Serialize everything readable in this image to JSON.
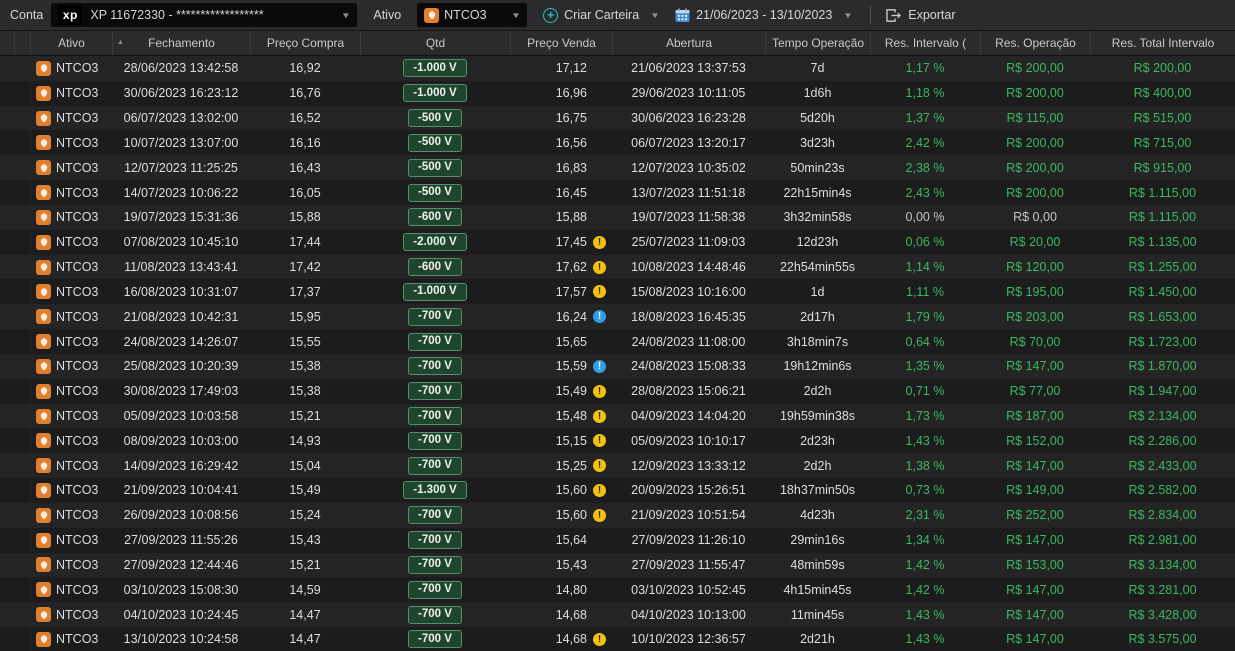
{
  "toolbar": {
    "conta_label": "Conta",
    "account": {
      "logo": "xp",
      "value": "XP 11672330 - ******************"
    },
    "ativo_label": "Ativo",
    "asset": {
      "icon": "natura-logo",
      "value": "NTCO3"
    },
    "criar_carteira_label": "Criar Carteira",
    "date_range": "21/06/2023 - 13/10/2023",
    "exportar_label": "Exportar"
  },
  "table": {
    "columns": [
      "Ativo",
      "Fechamento",
      "Preço Compra",
      "Qtd",
      "Preço Venda",
      "Abertura",
      "Tempo Operação",
      "Res. Intervalo (",
      "Res. Operação",
      "Res. Total Intervalo"
    ],
    "rows": [
      {
        "ativo": "NTCO3",
        "fechamento": "28/06/2023 13:42:58",
        "preco_compra": "16,92",
        "qtd": "-1.000 V",
        "preco_venda": "17,12",
        "alerta": "none",
        "abertura": "21/06/2023 13:37:53",
        "tempo": "7d",
        "res_intervalo": "1,17 %",
        "res_operacao": "R$ 200,00",
        "res_total": "R$ 200,00",
        "muted": false
      },
      {
        "ativo": "NTCO3",
        "fechamento": "30/06/2023 16:23:12",
        "preco_compra": "16,76",
        "qtd": "-1.000 V",
        "preco_venda": "16,96",
        "alerta": "none",
        "abertura": "29/06/2023 10:11:05",
        "tempo": "1d6h",
        "res_intervalo": "1,18 %",
        "res_operacao": "R$ 200,00",
        "res_total": "R$ 400,00",
        "muted": false
      },
      {
        "ativo": "NTCO3",
        "fechamento": "06/07/2023 13:02:00",
        "preco_compra": "16,52",
        "qtd": "-500 V",
        "preco_venda": "16,75",
        "alerta": "none",
        "abertura": "30/06/2023 16:23:28",
        "tempo": "5d20h",
        "res_intervalo": "1,37 %",
        "res_operacao": "R$ 115,00",
        "res_total": "R$ 515,00",
        "muted": false
      },
      {
        "ativo": "NTCO3",
        "fechamento": "10/07/2023 13:07:00",
        "preco_compra": "16,16",
        "qtd": "-500 V",
        "preco_venda": "16,56",
        "alerta": "none",
        "abertura": "06/07/2023 13:20:17",
        "tempo": "3d23h",
        "res_intervalo": "2,42 %",
        "res_operacao": "R$ 200,00",
        "res_total": "R$ 715,00",
        "muted": false
      },
      {
        "ativo": "NTCO3",
        "fechamento": "12/07/2023 11:25:25",
        "preco_compra": "16,43",
        "qtd": "-500 V",
        "preco_venda": "16,83",
        "alerta": "none",
        "abertura": "12/07/2023 10:35:02",
        "tempo": "50min23s",
        "res_intervalo": "2,38 %",
        "res_operacao": "R$ 200,00",
        "res_total": "R$ 915,00",
        "muted": false
      },
      {
        "ativo": "NTCO3",
        "fechamento": "14/07/2023 10:06:22",
        "preco_compra": "16,05",
        "qtd": "-500 V",
        "preco_venda": "16,45",
        "alerta": "none",
        "abertura": "13/07/2023 11:51:18",
        "tempo": "22h15min4s",
        "res_intervalo": "2,43 %",
        "res_operacao": "R$ 200,00",
        "res_total": "R$ 1.115,00",
        "muted": false
      },
      {
        "ativo": "NTCO3",
        "fechamento": "19/07/2023 15:31:36",
        "preco_compra": "15,88",
        "qtd": "-600 V",
        "preco_venda": "15,88",
        "alerta": "none",
        "abertura": "19/07/2023 11:58:38",
        "tempo": "3h32min58s",
        "res_intervalo": "0,00 %",
        "res_operacao": "R$ 0,00",
        "res_total": "R$ 1.115,00",
        "muted": true
      },
      {
        "ativo": "NTCO3",
        "fechamento": "07/08/2023 10:45:10",
        "preco_compra": "17,44",
        "qtd": "-2.000 V",
        "preco_venda": "17,45",
        "alerta": "yellow",
        "abertura": "25/07/2023 11:09:03",
        "tempo": "12d23h",
        "res_intervalo": "0,06 %",
        "res_operacao": "R$ 20,00",
        "res_total": "R$ 1.135,00",
        "muted": false
      },
      {
        "ativo": "NTCO3",
        "fechamento": "11/08/2023 13:43:41",
        "preco_compra": "17,42",
        "qtd": "-600 V",
        "preco_venda": "17,62",
        "alerta": "yellow",
        "abertura": "10/08/2023 14:48:46",
        "tempo": "22h54min55s",
        "res_intervalo": "1,14 %",
        "res_operacao": "R$ 120,00",
        "res_total": "R$ 1.255,00",
        "muted": false
      },
      {
        "ativo": "NTCO3",
        "fechamento": "16/08/2023 10:31:07",
        "preco_compra": "17,37",
        "qtd": "-1.000 V",
        "preco_venda": "17,57",
        "alerta": "yellow",
        "abertura": "15/08/2023 10:16:00",
        "tempo": "1d",
        "res_intervalo": "1,11 %",
        "res_operacao": "R$ 195,00",
        "res_total": "R$ 1.450,00",
        "muted": false
      },
      {
        "ativo": "NTCO3",
        "fechamento": "21/08/2023 10:42:31",
        "preco_compra": "15,95",
        "qtd": "-700 V",
        "preco_venda": "16,24",
        "alerta": "blue",
        "abertura": "18/08/2023 16:45:35",
        "tempo": "2d17h",
        "res_intervalo": "1,79 %",
        "res_operacao": "R$ 203,00",
        "res_total": "R$ 1.653,00",
        "muted": false
      },
      {
        "ativo": "NTCO3",
        "fechamento": "24/08/2023 14:26:07",
        "preco_compra": "15,55",
        "qtd": "-700 V",
        "preco_venda": "15,65",
        "alerta": "none",
        "abertura": "24/08/2023 11:08:00",
        "tempo": "3h18min7s",
        "res_intervalo": "0,64 %",
        "res_operacao": "R$ 70,00",
        "res_total": "R$ 1.723,00",
        "muted": false
      },
      {
        "ativo": "NTCO3",
        "fechamento": "25/08/2023 10:20:39",
        "preco_compra": "15,38",
        "qtd": "-700 V",
        "preco_venda": "15,59",
        "alerta": "blue",
        "abertura": "24/08/2023 15:08:33",
        "tempo": "19h12min6s",
        "res_intervalo": "1,35 %",
        "res_operacao": "R$ 147,00",
        "res_total": "R$ 1.870,00",
        "muted": false
      },
      {
        "ativo": "NTCO3",
        "fechamento": "30/08/2023 17:49:03",
        "preco_compra": "15,38",
        "qtd": "-700 V",
        "preco_venda": "15,49",
        "alerta": "yellow",
        "abertura": "28/08/2023 15:06:21",
        "tempo": "2d2h",
        "res_intervalo": "0,71 %",
        "res_operacao": "R$ 77,00",
        "res_total": "R$ 1.947,00",
        "muted": false
      },
      {
        "ativo": "NTCO3",
        "fechamento": "05/09/2023 10:03:58",
        "preco_compra": "15,21",
        "qtd": "-700 V",
        "preco_venda": "15,48",
        "alerta": "yellow",
        "abertura": "04/09/2023 14:04:20",
        "tempo": "19h59min38s",
        "res_intervalo": "1,73 %",
        "res_operacao": "R$ 187,00",
        "res_total": "R$ 2.134,00",
        "muted": false
      },
      {
        "ativo": "NTCO3",
        "fechamento": "08/09/2023 10:03:00",
        "preco_compra": "14,93",
        "qtd": "-700 V",
        "preco_venda": "15,15",
        "alerta": "yellow",
        "abertura": "05/09/2023 10:10:17",
        "tempo": "2d23h",
        "res_intervalo": "1,43 %",
        "res_operacao": "R$ 152,00",
        "res_total": "R$ 2.286,00",
        "muted": false
      },
      {
        "ativo": "NTCO3",
        "fechamento": "14/09/2023 16:29:42",
        "preco_compra": "15,04",
        "qtd": "-700 V",
        "preco_venda": "15,25",
        "alerta": "yellow",
        "abertura": "12/09/2023 13:33:12",
        "tempo": "2d2h",
        "res_intervalo": "1,38 %",
        "res_operacao": "R$ 147,00",
        "res_total": "R$ 2.433,00",
        "muted": false
      },
      {
        "ativo": "NTCO3",
        "fechamento": "21/09/2023 10:04:41",
        "preco_compra": "15,49",
        "qtd": "-1.300 V",
        "preco_venda": "15,60",
        "alerta": "yellow",
        "abertura": "20/09/2023 15:26:51",
        "tempo": "18h37min50s",
        "res_intervalo": "0,73 %",
        "res_operacao": "R$ 149,00",
        "res_total": "R$ 2.582,00",
        "muted": false
      },
      {
        "ativo": "NTCO3",
        "fechamento": "26/09/2023 10:08:56",
        "preco_compra": "15,24",
        "qtd": "-700 V",
        "preco_venda": "15,60",
        "alerta": "yellow",
        "abertura": "21/09/2023 10:51:54",
        "tempo": "4d23h",
        "res_intervalo": "2,31 %",
        "res_operacao": "R$ 252,00",
        "res_total": "R$ 2.834,00",
        "muted": false
      },
      {
        "ativo": "NTCO3",
        "fechamento": "27/09/2023 11:55:26",
        "preco_compra": "15,43",
        "qtd": "-700 V",
        "preco_venda": "15,64",
        "alerta": "none",
        "abertura": "27/09/2023 11:26:10",
        "tempo": "29min16s",
        "res_intervalo": "1,34 %",
        "res_operacao": "R$ 147,00",
        "res_total": "R$ 2.981,00",
        "muted": false
      },
      {
        "ativo": "NTCO3",
        "fechamento": "27/09/2023 12:44:46",
        "preco_compra": "15,21",
        "qtd": "-700 V",
        "preco_venda": "15,43",
        "alerta": "none",
        "abertura": "27/09/2023 11:55:47",
        "tempo": "48min59s",
        "res_intervalo": "1,42 %",
        "res_operacao": "R$ 153,00",
        "res_total": "R$ 3.134,00",
        "muted": false
      },
      {
        "ativo": "NTCO3",
        "fechamento": "03/10/2023 15:08:30",
        "preco_compra": "14,59",
        "qtd": "-700 V",
        "preco_venda": "14,80",
        "alerta": "none",
        "abertura": "03/10/2023 10:52:45",
        "tempo": "4h15min45s",
        "res_intervalo": "1,42 %",
        "res_operacao": "R$ 147,00",
        "res_total": "R$ 3.281,00",
        "muted": false
      },
      {
        "ativo": "NTCO3",
        "fechamento": "04/10/2023 10:24:45",
        "preco_compra": "14,47",
        "qtd": "-700 V",
        "preco_venda": "14,68",
        "alerta": "none",
        "abertura": "04/10/2023 10:13:00",
        "tempo": "11min45s",
        "res_intervalo": "1,43 %",
        "res_operacao": "R$ 147,00",
        "res_total": "R$ 3.428,00",
        "muted": false
      },
      {
        "ativo": "NTCO3",
        "fechamento": "13/10/2023 10:24:58",
        "preco_compra": "14,47",
        "qtd": "-700 V",
        "preco_venda": "14,68",
        "alerta": "yellow",
        "abertura": "10/10/2023 12:36:57",
        "tempo": "2d21h",
        "res_intervalo": "1,43 %",
        "res_operacao": "R$ 147,00",
        "res_total": "R$ 3.575,00",
        "muted": false
      }
    ]
  },
  "colors": {
    "profit_green": "#3cb762",
    "badge_bg": "#20452f",
    "badge_border": "#55906a",
    "warning_yellow": "#f3c211",
    "info_blue": "#2e9fe6",
    "asset_orange": "#e0802e",
    "accent_teal": "#2abfca",
    "calendar_blue": "#3f8fd4"
  }
}
